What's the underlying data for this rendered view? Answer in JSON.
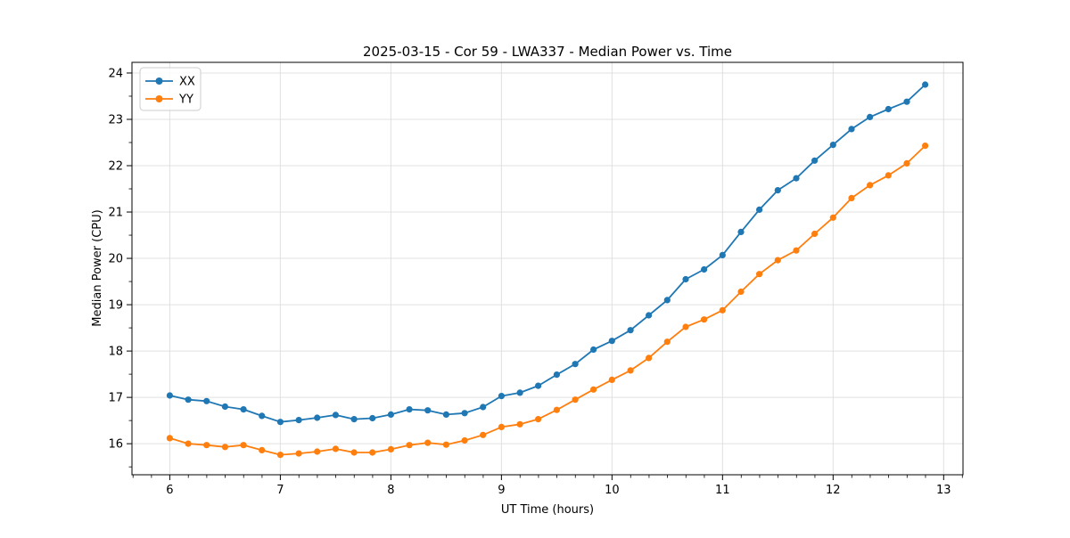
{
  "chart_data": {
    "type": "line",
    "title": "2025-03-15 - Cor 59 - LWA337 - Median Power vs. Time",
    "xlabel": "UT Time (hours)",
    "ylabel": "Median Power (CPU)",
    "legend_position": "upper left",
    "grid": true,
    "marker": "circle",
    "xlim": [
      5.658,
      13.175
    ],
    "ylim": [
      15.33,
      24.23
    ],
    "xticks": [
      6,
      7,
      8,
      9,
      10,
      11,
      12,
      13
    ],
    "yticks": [
      16,
      17,
      18,
      19,
      20,
      21,
      22,
      23,
      24
    ],
    "x_minor_step": 0.1667,
    "y_minor_step": 0.5,
    "grid_color": "#e0e0e0",
    "x": [
      6.0,
      6.167,
      6.333,
      6.5,
      6.667,
      6.833,
      7.0,
      7.167,
      7.333,
      7.5,
      7.667,
      7.833,
      8.0,
      8.167,
      8.333,
      8.5,
      8.667,
      8.833,
      9.0,
      9.167,
      9.333,
      9.5,
      9.667,
      9.833,
      10.0,
      10.167,
      10.333,
      10.5,
      10.667,
      10.833,
      11.0,
      11.167,
      11.333,
      11.5,
      11.667,
      11.833,
      12.0,
      12.167,
      12.333,
      12.5,
      12.667,
      12.833
    ],
    "series": [
      {
        "name": "XX",
        "color": "#1f77b4",
        "values": [
          17.04,
          16.95,
          16.92,
          16.8,
          16.74,
          16.6,
          16.47,
          16.51,
          16.56,
          16.62,
          16.53,
          16.55,
          16.63,
          16.74,
          16.72,
          16.63,
          16.66,
          16.79,
          17.03,
          17.1,
          17.25,
          17.49,
          17.72,
          18.03,
          18.22,
          18.45,
          18.77,
          19.1,
          19.55,
          19.76,
          20.07,
          20.57,
          21.05,
          21.47,
          21.73,
          22.11,
          22.45,
          22.79,
          23.05,
          23.22,
          23.38,
          23.75
        ]
      },
      {
        "name": "YY",
        "color": "#ff7f0e",
        "values": [
          16.12,
          16.0,
          15.97,
          15.93,
          15.97,
          15.86,
          15.76,
          15.79,
          15.83,
          15.89,
          15.81,
          15.81,
          15.88,
          15.97,
          16.02,
          15.98,
          16.07,
          16.19,
          16.36,
          16.42,
          16.53,
          16.73,
          16.95,
          17.17,
          17.38,
          17.58,
          17.85,
          18.2,
          18.52,
          18.68,
          18.88,
          19.28,
          19.66,
          19.96,
          20.17,
          20.53,
          20.88,
          21.3,
          21.58,
          21.79,
          22.05,
          22.43
        ]
      }
    ]
  }
}
